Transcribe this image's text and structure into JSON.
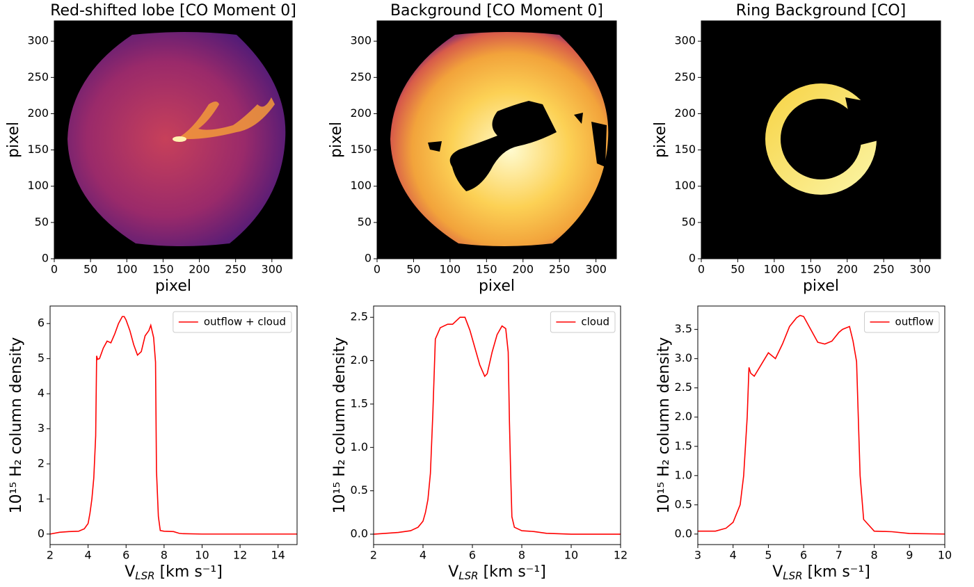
{
  "chart_data": [
    {
      "type": "image",
      "title": "Red-shifted lobe [CO Moment 0]",
      "xlabel": "pixel",
      "ylabel": "pixel",
      "xlim": [
        0,
        328
      ],
      "ylim": [
        0,
        328
      ],
      "xticks": [
        0,
        50,
        100,
        150,
        200,
        250,
        300
      ],
      "yticks": [
        0,
        50,
        100,
        150,
        200,
        250,
        300
      ]
    },
    {
      "type": "image",
      "title": "Background [CO Moment 0]",
      "xlabel": "pixel",
      "ylabel": "pixel",
      "xlim": [
        0,
        328
      ],
      "ylim": [
        0,
        328
      ],
      "xticks": [
        0,
        50,
        100,
        150,
        200,
        250,
        300
      ],
      "yticks": [
        0,
        50,
        100,
        150,
        200,
        250,
        300
      ]
    },
    {
      "type": "image",
      "title": "Ring Background [CO]",
      "xlabel": "pixel",
      "ylabel": "pixel",
      "xlim": [
        0,
        328
      ],
      "ylim": [
        0,
        328
      ],
      "xticks": [
        0,
        50,
        100,
        150,
        200,
        250,
        300
      ],
      "yticks": [
        0,
        50,
        100,
        150,
        200,
        250,
        300
      ]
    },
    {
      "type": "line",
      "xlabel": {
        "text": "V",
        "sub": "LSR",
        "rest": " [km s⁻¹]"
      },
      "ylabel": "10¹⁵ H₂ column density",
      "xlim": [
        2,
        15
      ],
      "ylim": [
        -0.3,
        6.5
      ],
      "xticks": [
        2,
        4,
        6,
        8,
        10,
        12,
        14
      ],
      "yticks": [
        0,
        1,
        2,
        3,
        4,
        5,
        6
      ],
      "legend": "upper right",
      "x": [
        2,
        2.5,
        3,
        3.5,
        3.8,
        4.0,
        4.1,
        4.2,
        4.3,
        4.4,
        4.45,
        4.5,
        4.6,
        4.8,
        5.0,
        5.2,
        5.4,
        5.6,
        5.8,
        5.9,
        6.0,
        6.2,
        6.4,
        6.6,
        6.8,
        7.0,
        7.2,
        7.3,
        7.45,
        7.55,
        7.6,
        7.7,
        7.8,
        8.0,
        8.5,
        8.8,
        9,
        10,
        12,
        15
      ],
      "series": [
        {
          "name": "outflow + cloud",
          "color": "#ff0000",
          "values": [
            0,
            0.05,
            0.07,
            0.08,
            0.15,
            0.3,
            0.6,
            1.0,
            1.6,
            2.8,
            5.08,
            4.98,
            5.0,
            5.3,
            5.5,
            5.45,
            5.7,
            6.0,
            6.2,
            6.2,
            6.1,
            5.8,
            5.4,
            5.1,
            5.2,
            5.65,
            5.8,
            5.95,
            5.6,
            4.9,
            1.8,
            0.5,
            0.1,
            0.08,
            0.07,
            0.02,
            0.01,
            0,
            0,
            0
          ]
        }
      ]
    },
    {
      "type": "line",
      "xlabel": {
        "text": "V",
        "sub": "LSR",
        "rest": " [km s⁻¹]"
      },
      "ylabel": "10¹⁵ H₂ column density",
      "xlim": [
        2,
        12
      ],
      "ylim": [
        -0.12,
        2.63
      ],
      "xticks": [
        2,
        4,
        6,
        8,
        10,
        12
      ],
      "yticks": [
        0.0,
        0.5,
        1.0,
        1.5,
        2.0,
        2.5
      ],
      "legend": "upper right",
      "x": [
        2,
        3,
        3.5,
        3.8,
        4.0,
        4.1,
        4.2,
        4.3,
        4.4,
        4.5,
        4.7,
        5.0,
        5.2,
        5.5,
        5.7,
        5.9,
        6.1,
        6.3,
        6.5,
        6.6,
        6.8,
        7.0,
        7.2,
        7.35,
        7.45,
        7.5,
        7.55,
        7.6,
        7.7,
        8,
        8.5,
        9,
        10,
        12
      ],
      "series": [
        {
          "name": "cloud",
          "color": "#ff0000",
          "values": [
            0,
            0.02,
            0.04,
            0.08,
            0.15,
            0.25,
            0.4,
            0.7,
            1.4,
            2.25,
            2.38,
            2.42,
            2.42,
            2.5,
            2.5,
            2.35,
            2.15,
            1.95,
            1.82,
            1.85,
            2.1,
            2.3,
            2.4,
            2.37,
            2.1,
            1.3,
            0.7,
            0.2,
            0.08,
            0.04,
            0.03,
            0.01,
            0,
            0
          ]
        }
      ]
    },
    {
      "type": "line",
      "xlabel": {
        "text": "V",
        "sub": "LSR",
        "rest": " [km s⁻¹]"
      },
      "ylabel": "10¹⁵ H₂ column density",
      "xlim": [
        3,
        10
      ],
      "ylim": [
        -0.18,
        3.9
      ],
      "xticks": [
        3,
        4,
        5,
        6,
        7,
        8,
        9,
        10
      ],
      "yticks": [
        0.0,
        0.5,
        1.0,
        1.5,
        2.0,
        2.5,
        3.0,
        3.5
      ],
      "legend": "upper right",
      "x": [
        3,
        3.5,
        3.8,
        4.0,
        4.2,
        4.3,
        4.4,
        4.45,
        4.5,
        4.6,
        4.8,
        5.0,
        5.2,
        5.4,
        5.6,
        5.8,
        5.9,
        6.0,
        6.2,
        6.4,
        6.6,
        6.8,
        7.0,
        7.1,
        7.3,
        7.4,
        7.5,
        7.6,
        7.7,
        8,
        8.5,
        9,
        10
      ],
      "series": [
        {
          "name": "outflow",
          "color": "#ff0000",
          "values": [
            0.05,
            0.05,
            0.1,
            0.2,
            0.5,
            1.0,
            2.0,
            2.85,
            2.75,
            2.7,
            2.9,
            3.1,
            3.0,
            3.25,
            3.55,
            3.7,
            3.74,
            3.72,
            3.5,
            3.28,
            3.25,
            3.3,
            3.45,
            3.5,
            3.55,
            3.3,
            2.95,
            1.0,
            0.25,
            0.05,
            0.04,
            0.01,
            0
          ]
        }
      ]
    }
  ]
}
